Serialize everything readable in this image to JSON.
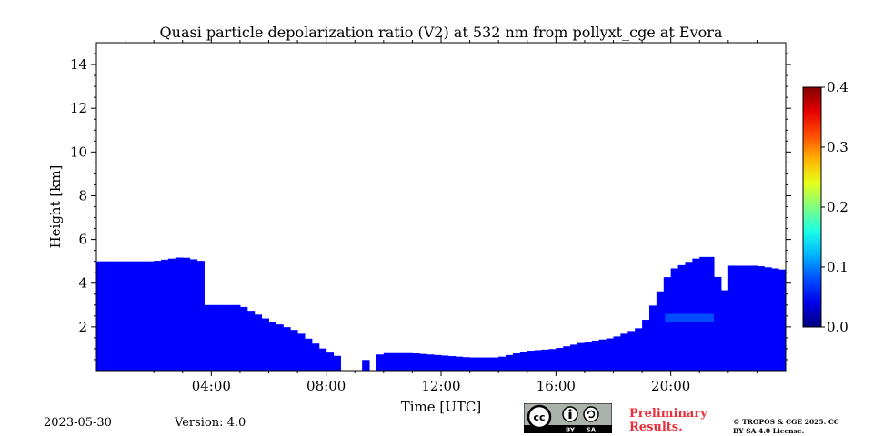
{
  "title": "Quasi particle depolarization ratio (V2) at 532 nm from pollyxt_cge at Evora",
  "date": "2023-05-30",
  "version": "Version: 4.0",
  "preliminary": "Preliminary Results.",
  "copyright": "© TROPOS & CGE 2025. CC BY SA 4.0 License.",
  "license_badge": {
    "cc": "cc",
    "by": "BY",
    "sa": "SA"
  },
  "colors": {
    "background": "#ffffff",
    "accent": "#e8303a"
  },
  "chart_data": {
    "type": "heatmap",
    "title": "Quasi particle depolarization ratio (V2) at 532 nm from pollyxt_cge at Evora",
    "xlabel": "Time [UTC]",
    "ylabel": "Height [km]",
    "xlim_hours": [
      0,
      24
    ],
    "ylim_km": [
      0,
      15
    ],
    "x_ticks": [
      4,
      8,
      12,
      16,
      20
    ],
    "x_tick_labels": [
      "04:00",
      "08:00",
      "12:00",
      "16:00",
      "20:00"
    ],
    "y_ticks": [
      2,
      4,
      6,
      8,
      10,
      12,
      14
    ],
    "y_tick_labels": [
      "2",
      "4",
      "6",
      "8",
      "10",
      "12",
      "14"
    ],
    "colorbar": {
      "min": 0.0,
      "max": 0.4,
      "ticks": [
        0.0,
        0.1,
        0.2,
        0.3,
        0.4
      ],
      "tick_labels": [
        "0.0",
        "0.1",
        "0.2",
        "0.3",
        "0.4"
      ],
      "colormap": "jet"
    },
    "signal_top_km": [
      [
        0.0,
        5.0
      ],
      [
        1.0,
        5.0
      ],
      [
        2.0,
        5.0
      ],
      [
        3.0,
        5.2
      ],
      [
        3.7,
        5.0
      ],
      [
        3.8,
        3.0
      ],
      [
        5.0,
        3.0
      ],
      [
        6.0,
        2.3
      ],
      [
        7.0,
        1.8
      ],
      [
        8.0,
        0.9
      ],
      [
        9.0,
        0.3
      ],
      [
        10.0,
        0.8
      ],
      [
        11.0,
        0.8
      ],
      [
        12.0,
        0.7
      ],
      [
        13.0,
        0.6
      ],
      [
        14.0,
        0.6
      ],
      [
        15.0,
        0.9
      ],
      [
        16.0,
        1.0
      ],
      [
        17.0,
        1.3
      ],
      [
        18.0,
        1.5
      ],
      [
        19.0,
        2.0
      ],
      [
        20.0,
        4.6
      ],
      [
        21.0,
        5.2
      ],
      [
        21.5,
        5.2
      ],
      [
        21.8,
        3.0
      ],
      [
        22.0,
        4.8
      ],
      [
        23.0,
        4.8
      ],
      [
        24.0,
        4.6
      ]
    ],
    "gaps_hours": [
      [
        8.6,
        9.2
      ],
      [
        9.6,
        9.7
      ]
    ],
    "typical_value": 0.05,
    "elevated_layer": {
      "time_hours": [
        19.8,
        21.5
      ],
      "height_km": [
        2.2,
        2.6
      ],
      "value": 0.1
    }
  }
}
